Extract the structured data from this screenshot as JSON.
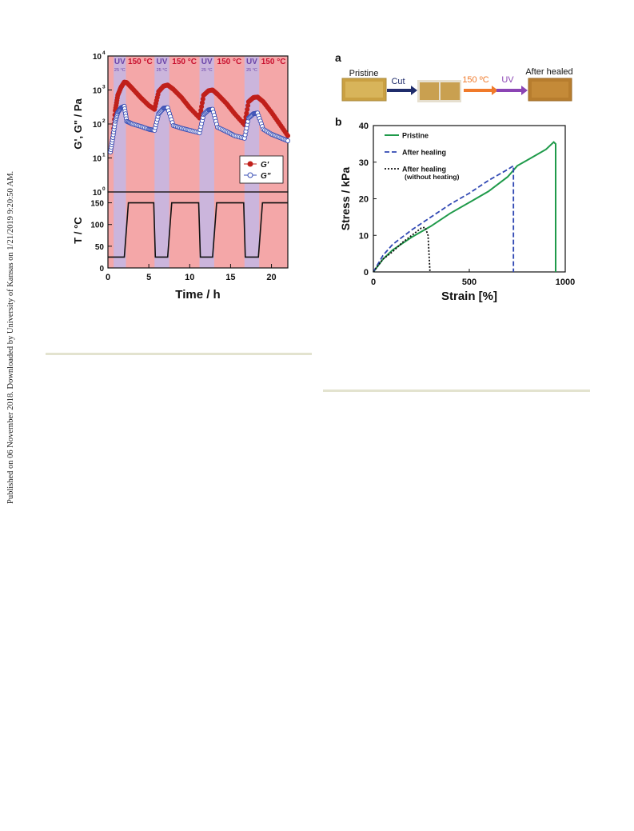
{
  "margin_note": "Published on 06 November 2018. Downloaded by University of Kansas on 1/21/2019 9:20:50 AM.",
  "colors": {
    "heat_band": "#f4a7a8",
    "uv_band": "#cbb5dc",
    "g_prime": "#c0201b",
    "g_double": "#3a4fb5",
    "pristine": "#1f9a4a",
    "after_healing": "#3048b3",
    "rule": "#e3e3cf",
    "uv_text": "#6a44a9",
    "heat_text": "#c8102e",
    "arrow_cut": "#1f2c6b",
    "arrow_heat": "#f07a2a",
    "arrow_uv": "#8b44b4"
  },
  "left_figure": {
    "band_labels": [
      "UV",
      "150 °C",
      "UV",
      "150 °C",
      "UV",
      "150 °C",
      "UV",
      "150 °C"
    ],
    "uv_sub": "25 °C",
    "top_ylabel": "G', G\" / Pa",
    "top_yticks": [
      "10",
      "10",
      "10",
      "10",
      "10"
    ],
    "top_yexp": [
      "4",
      "3",
      "2",
      "1",
      "0"
    ],
    "legend": [
      "G'",
      "G\""
    ],
    "bottom_ylabel": "T / °C",
    "bottom_yticks": [
      "150",
      "100",
      "50",
      "0"
    ],
    "xlabel": "Time / h",
    "xticks": [
      "0",
      "5",
      "10",
      "15",
      "20"
    ]
  },
  "right_figure": {
    "panel_a_label": "a",
    "panel_b_label": "b",
    "photos": [
      "Pristine",
      "After healed"
    ],
    "step_cut": "Cut",
    "step_heat": "150 ºC",
    "step_uv": "UV",
    "ylabel": "Stress / kPa",
    "xlabel": "Strain [%]",
    "yticks": [
      "40",
      "30",
      "20",
      "10",
      "0"
    ],
    "xticks": [
      "0",
      "500",
      "1000"
    ],
    "legend": [
      "Pristine",
      "After healing",
      "After healing",
      "(without heating)"
    ]
  },
  "chart_data": [
    {
      "type": "line",
      "title": "",
      "xlabel": "Time / h",
      "ylabel": "G', G\" / Pa",
      "y_scale": "log",
      "ylim": [
        1,
        10000
      ],
      "xlim": [
        0,
        22
      ],
      "uv_intervals_h": [
        [
          0.7,
          2.2
        ],
        [
          5.7,
          7.5
        ],
        [
          11.2,
          13.0
        ],
        [
          16.7,
          18.5
        ]
      ],
      "series": [
        {
          "name": "G'",
          "x": [
            0.3,
            0.6,
            0.9,
            1.2,
            1.6,
            2.0,
            2.3,
            3,
            4,
            5,
            5.7,
            6.2,
            6.8,
            7.3,
            8,
            9,
            10,
            11.2,
            11.7,
            12.3,
            12.8,
            13.4,
            14.5,
            15.5,
            16.7,
            17.2,
            17.8,
            18.3,
            19,
            20,
            21,
            22
          ],
          "y": [
            15,
            40,
            250,
            700,
            1200,
            1700,
            1650,
            1100,
            600,
            350,
            270,
            900,
            1300,
            1400,
            1050,
            600,
            300,
            150,
            700,
            950,
            1000,
            750,
            400,
            200,
            95,
            450,
            600,
            620,
            450,
            220,
            100,
            45
          ]
        },
        {
          "name": "G\"",
          "x": [
            0.3,
            0.6,
            0.9,
            1.2,
            1.6,
            2.0,
            2.3,
            3,
            4,
            5,
            5.7,
            6.2,
            6.8,
            7.3,
            8,
            9,
            10,
            11.2,
            11.7,
            12.3,
            12.8,
            13.4,
            14.5,
            15.5,
            16.7,
            17.2,
            17.8,
            18.3,
            19,
            20,
            21,
            22
          ],
          "y": [
            15,
            40,
            120,
            220,
            300,
            330,
            120,
            100,
            85,
            70,
            65,
            200,
            290,
            300,
            90,
            75,
            65,
            55,
            190,
            260,
            270,
            80,
            60,
            45,
            38,
            150,
            200,
            210,
            70,
            50,
            40,
            32
          ]
        }
      ]
    },
    {
      "type": "line",
      "title": "",
      "xlabel": "Time / h",
      "ylabel": "T / °C",
      "ylim": [
        0,
        175
      ],
      "xlim": [
        0,
        22
      ],
      "series": [
        {
          "name": "",
          "x": [
            0,
            0.7,
            0.7,
            2.0,
            2.5,
            5.6,
            5.8,
            7.3,
            7.8,
            11.1,
            11.3,
            12.8,
            13.3,
            16.6,
            16.8,
            18.4,
            18.9,
            22
          ],
          "y": [
            25,
            25,
            25,
            25,
            150,
            150,
            25,
            25,
            150,
            150,
            25,
            25,
            150,
            150,
            25,
            25,
            150,
            150
          ]
        }
      ]
    },
    {
      "type": "line",
      "title": "",
      "xlabel": "Strain [%]",
      "ylabel": "Stress / kPa",
      "xlim": [
        0,
        1000
      ],
      "ylim": [
        0,
        40
      ],
      "series": [
        {
          "name": "Pristine",
          "x": [
            0,
            50,
            100,
            200,
            300,
            400,
            500,
            600,
            700,
            750,
            800,
            850,
            900,
            940,
            950,
            950
          ],
          "y": [
            0,
            3.5,
            6,
            9.5,
            12.5,
            16,
            19,
            22,
            26,
            29,
            30.5,
            32,
            33.5,
            35.5,
            35,
            0
          ]
        },
        {
          "name": "After healing",
          "x": [
            0,
            50,
            100,
            200,
            300,
            400,
            500,
            600,
            700,
            730,
            730
          ],
          "y": [
            0,
            4.5,
            7.5,
            11.5,
            15,
            18.5,
            21.5,
            25,
            28,
            29,
            0
          ]
        },
        {
          "name": "After healing (without heating)",
          "x": [
            0,
            50,
            100,
            150,
            200,
            250,
            270,
            285,
            290,
            295
          ],
          "y": [
            0,
            3.5,
            5.5,
            8,
            10,
            12,
            12.2,
            10,
            5,
            0
          ]
        }
      ]
    }
  ]
}
